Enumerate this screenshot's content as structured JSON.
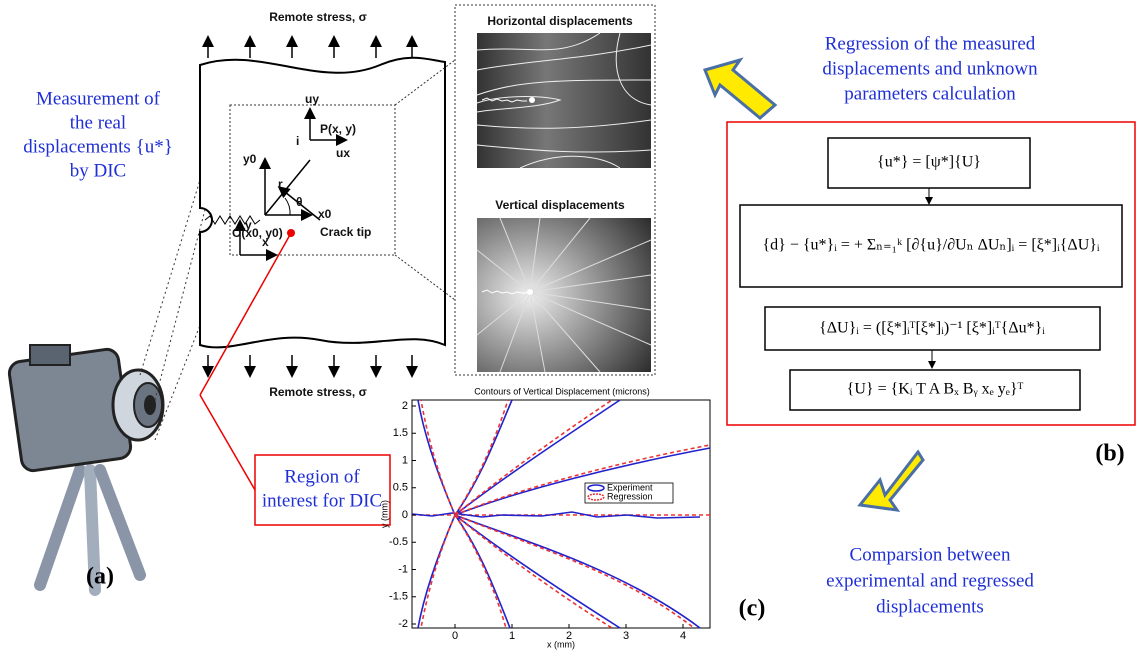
{
  "panel_a": {
    "label": "(a)",
    "caption": [
      "Measurement of",
      "the real",
      "displacements {u*}",
      "by DIC"
    ],
    "top_load": "Remote stress, σ",
    "bottom_load": "Remote stress, σ",
    "sketch": {
      "uy": "uy",
      "point": "P(x, y)",
      "i": "i",
      "y0": "y0",
      "r": "r",
      "ux": "ux",
      "theta": "θ",
      "x0": "x0",
      "origin": "O(x0, y0)",
      "crack_tip": "Crack tip",
      "y": "y",
      "x": "x"
    },
    "roi": [
      "Region of",
      "interest for DIC"
    ],
    "horizontal_title": "Horizontal displacements",
    "vertical_title": "Vertical displacements"
  },
  "panel_b": {
    "label": "(b)",
    "caption": [
      "Regression of the measured",
      "displacements and unknown",
      "parameters calculation"
    ],
    "equations": [
      "{u*} = [ψ*]{U}",
      "{d} − {u*}ᵢ = + Σₙ₌₁ᵏ [∂{u}/∂Uₙ ΔUₙ]ᵢ = [ξ*]ᵢ{ΔU}ᵢ",
      "{ΔU}ᵢ = ([ξ*]ᵢᵀ[ξ*]ᵢ)⁻¹ [ξ*]ᵢᵀ{Δu*}ᵢ",
      "{U} = {Kᵢ   T   A   Bₓ   Bᵧ   xₑ   yₑ}ᵀ"
    ]
  },
  "panel_c": {
    "label": "(c)",
    "caption": [
      "Comparsion between",
      "experimental and regressed",
      "displacements"
    ],
    "plot_title": "Contours of Vertical Displacement (microns)",
    "x_label": "x (mm)",
    "y_label": "y (mm)",
    "x_ticks": [
      0,
      1,
      2,
      3,
      4
    ],
    "y_ticks": [
      2,
      1.5,
      1,
      0.5,
      0,
      -0.5,
      -1,
      -1.5,
      -2
    ],
    "legend": [
      "Experiment",
      "Regression"
    ]
  }
}
